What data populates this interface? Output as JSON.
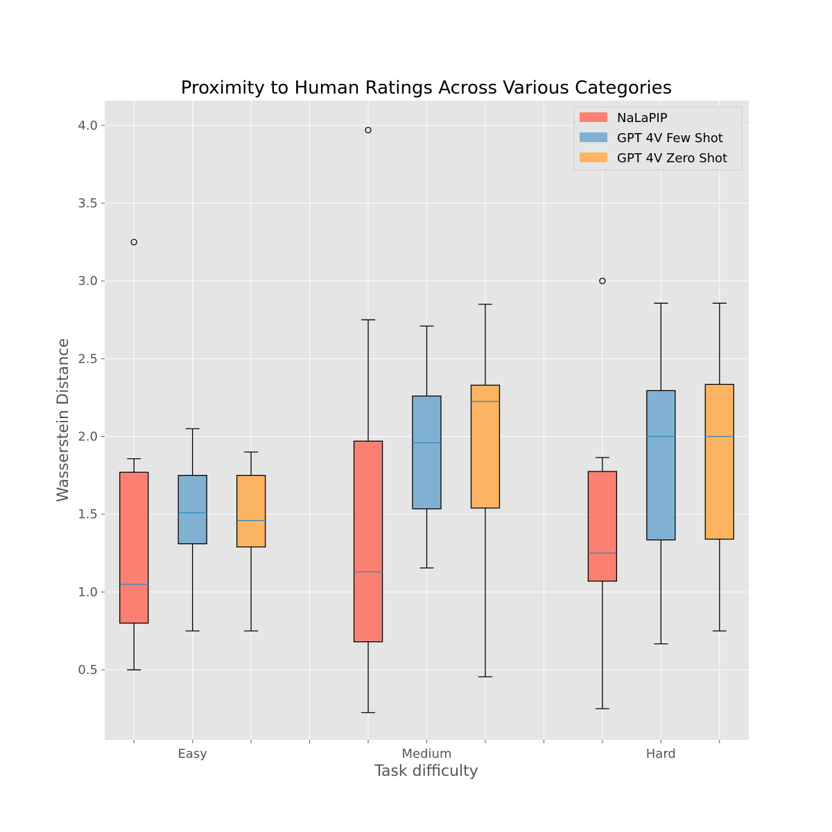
{
  "chart_data": {
    "type": "boxplot",
    "title": "Proximity to Human Ratings Across Various Categories",
    "xlabel": "Task difficulty",
    "ylabel": "Wasserstein Distance",
    "ylim": [
      0.05,
      4.16
    ],
    "yticks": [
      "0.5",
      "1.0",
      "1.5",
      "2.0",
      "2.5",
      "3.0",
      "3.5",
      "4.0"
    ],
    "categories": [
      "Easy",
      "Medium",
      "Hard"
    ],
    "grid": true,
    "legend_position": "top-right",
    "background_color": "#e5e5e5",
    "series": [
      {
        "name": "NaLaPIP",
        "color": "#fa8072",
        "boxes": [
          {
            "whislo": 0.5,
            "q1": 0.8,
            "med": 1.05,
            "q3": 1.77,
            "whishi": 1.857,
            "fliers": [
              3.25
            ]
          },
          {
            "whislo": 0.225,
            "q1": 0.68,
            "med": 1.13,
            "q3": 1.97,
            "whishi": 2.75,
            "fliers": [
              3.97
            ]
          },
          {
            "whislo": 0.25,
            "q1": 1.07,
            "med": 1.25,
            "q3": 1.775,
            "whishi": 1.865,
            "fliers": [
              3.0
            ]
          }
        ]
      },
      {
        "name": "GPT 4V Few Shot",
        "color": "#80b1d3",
        "boxes": [
          {
            "whislo": 0.75,
            "q1": 1.31,
            "med": 1.51,
            "q3": 1.75,
            "whishi": 2.05,
            "fliers": []
          },
          {
            "whislo": 1.155,
            "q1": 1.535,
            "med": 1.96,
            "q3": 2.26,
            "whishi": 2.71,
            "fliers": []
          },
          {
            "whislo": 0.667,
            "q1": 1.335,
            "med": 2.0,
            "q3": 2.295,
            "whishi": 2.857,
            "fliers": []
          }
        ]
      },
      {
        "name": "GPT 4V Zero Shot",
        "color": "#fdb462",
        "boxes": [
          {
            "whislo": 0.75,
            "q1": 1.29,
            "med": 1.46,
            "q3": 1.75,
            "whishi": 1.9,
            "fliers": []
          },
          {
            "whislo": 0.455,
            "q1": 1.54,
            "med": 2.225,
            "q3": 2.33,
            "whishi": 2.85,
            "fliers": []
          },
          {
            "whislo": 0.75,
            "q1": 1.34,
            "med": 2.0,
            "q3": 2.335,
            "whishi": 2.857,
            "fliers": []
          }
        ]
      }
    ]
  }
}
